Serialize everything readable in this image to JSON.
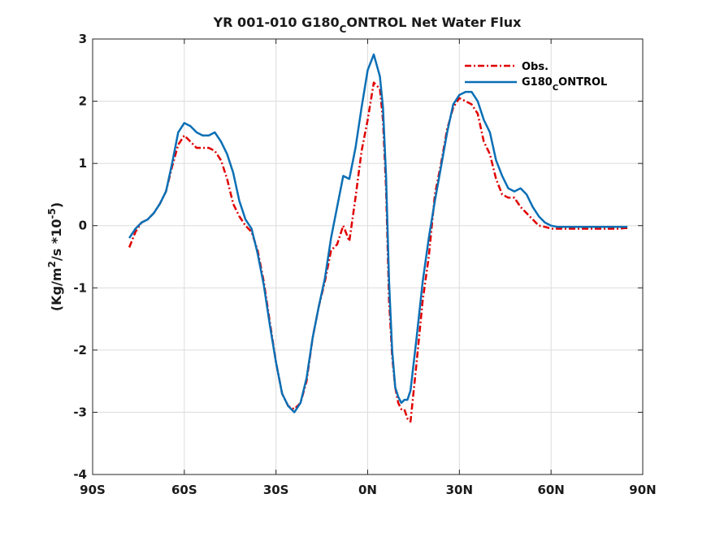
{
  "chart_data": {
    "type": "line",
    "title": "YR 001-010 G180_CONTROL  Net Water Flux",
    "title_parts": {
      "pre": "YR 001-010 G180",
      "sub": "C",
      "post": "ONTROL  Net Water Flux"
    },
    "xlabel": "",
    "ylabel": "(Kg/m^2/s *10^-5)",
    "ylabel_parts": {
      "a": "(Kg/m",
      "sup1": "2",
      "b": "/s *10",
      "sup2": "-5",
      "c": ")"
    },
    "xlim": [
      -90,
      90
    ],
    "ylim": [
      -4,
      3
    ],
    "xticks": [
      {
        "value": -90,
        "label": "90S"
      },
      {
        "value": -60,
        "label": "60S"
      },
      {
        "value": -30,
        "label": "30S"
      },
      {
        "value": 0,
        "label": "0N"
      },
      {
        "value": 30,
        "label": "30N"
      },
      {
        "value": 60,
        "label": "60N"
      },
      {
        "value": 90,
        "label": "90N"
      }
    ],
    "yticks": [
      {
        "value": 3,
        "label": "3"
      },
      {
        "value": 2,
        "label": "2"
      },
      {
        "value": 1,
        "label": "1"
      },
      {
        "value": 0,
        "label": "0"
      },
      {
        "value": -1,
        "label": "-1"
      },
      {
        "value": -2,
        "label": "-2"
      },
      {
        "value": -3,
        "label": "-3"
      },
      {
        "value": -4,
        "label": "-4"
      }
    ],
    "grid": true,
    "legend_position": "top-right",
    "series": [
      {
        "name": "Obs.",
        "legend_parts": {
          "pre": "Obs.",
          "sub": "",
          "post": ""
        },
        "color": "#e00000",
        "dash": "dashdot",
        "x": [
          -78,
          -76,
          -74,
          -72,
          -70,
          -68,
          -66,
          -64,
          -62,
          -60,
          -58,
          -56,
          -54,
          -52,
          -50,
          -48,
          -46,
          -44,
          -42,
          -40,
          -38,
          -36,
          -34,
          -32,
          -30,
          -28,
          -26,
          -24,
          -22,
          -20,
          -18,
          -16,
          -14,
          -12,
          -10,
          -8,
          -6,
          -4,
          -2,
          0,
          2,
          4,
          5,
          6,
          7,
          8,
          9,
          10,
          11,
          12,
          13,
          14,
          16,
          18,
          20,
          22,
          24,
          26,
          28,
          30,
          32,
          34,
          36,
          38,
          40,
          42,
          44,
          46,
          48,
          50,
          52,
          54,
          56,
          58,
          60,
          62,
          64,
          66,
          68,
          70,
          72,
          74,
          76,
          78,
          80,
          82,
          84,
          85
        ],
        "y": [
          -0.35,
          -0.1,
          0.05,
          0.1,
          0.2,
          0.35,
          0.55,
          0.95,
          1.3,
          1.45,
          1.35,
          1.25,
          1.25,
          1.25,
          1.2,
          1.05,
          0.75,
          0.35,
          0.15,
          0.0,
          -0.1,
          -0.4,
          -0.9,
          -1.55,
          -2.2,
          -2.7,
          -2.9,
          -2.95,
          -2.85,
          -2.5,
          -1.8,
          -1.3,
          -0.9,
          -0.4,
          -0.3,
          0.0,
          -0.25,
          0.45,
          1.2,
          1.7,
          2.3,
          2.2,
          1.7,
          0.6,
          -1.2,
          -2.1,
          -2.6,
          -2.85,
          -2.95,
          -2.95,
          -3.1,
          -3.15,
          -2.2,
          -1.2,
          -0.5,
          0.5,
          1.0,
          1.55,
          1.9,
          2.05,
          2.0,
          1.95,
          1.8,
          1.35,
          1.15,
          0.75,
          0.5,
          0.45,
          0.45,
          0.3,
          0.2,
          0.1,
          0.0,
          -0.02,
          -0.05,
          -0.05,
          -0.05,
          -0.05,
          -0.05,
          -0.05,
          -0.05,
          -0.05,
          -0.05,
          -0.05,
          -0.05,
          -0.05,
          -0.04,
          -0.04
        ],
        "y_note": ""
      },
      {
        "name": "G180_CONTROL",
        "legend_parts": {
          "pre": "G180",
          "sub": "C",
          "post": "ONTROL"
        },
        "color": "#0a6fb5",
        "dash": "solid",
        "x": [
          -78,
          -76,
          -74,
          -72,
          -70,
          -68,
          -66,
          -64,
          -62,
          -60,
          -58,
          -56,
          -54,
          -52,
          -50,
          -48,
          -46,
          -44,
          -42,
          -40,
          -38,
          -36,
          -34,
          -32,
          -30,
          -28,
          -26,
          -24,
          -22,
          -20,
          -18,
          -16,
          -14,
          -12,
          -10,
          -8,
          -6,
          -4,
          -2,
          0,
          2,
          4,
          5,
          6,
          7,
          8,
          9,
          10,
          11,
          12,
          13,
          14,
          16,
          18,
          20,
          22,
          24,
          26,
          28,
          30,
          32,
          34,
          36,
          38,
          40,
          42,
          44,
          46,
          48,
          50,
          52,
          54,
          56,
          58,
          60,
          62,
          64,
          66,
          68,
          70,
          72,
          74,
          76,
          78,
          80,
          82,
          84,
          85
        ],
        "y": [
          -0.2,
          -0.05,
          0.05,
          0.1,
          0.2,
          0.35,
          0.55,
          1.0,
          1.5,
          1.65,
          1.6,
          1.5,
          1.45,
          1.45,
          1.5,
          1.35,
          1.15,
          0.85,
          0.4,
          0.1,
          -0.05,
          -0.45,
          -0.95,
          -1.6,
          -2.2,
          -2.7,
          -2.9,
          -3.0,
          -2.85,
          -2.45,
          -1.8,
          -1.3,
          -0.85,
          -0.2,
          0.3,
          0.8,
          0.75,
          1.25,
          1.9,
          2.5,
          2.75,
          2.4,
          1.9,
          0.8,
          -0.9,
          -2.0,
          -2.6,
          -2.75,
          -2.85,
          -2.8,
          -2.8,
          -2.65,
          -1.8,
          -0.9,
          -0.2,
          0.4,
          0.95,
          1.5,
          1.95,
          2.1,
          2.15,
          2.15,
          2.0,
          1.7,
          1.5,
          1.05,
          0.8,
          0.6,
          0.55,
          0.6,
          0.5,
          0.3,
          0.15,
          0.05,
          0.0,
          -0.02,
          -0.02,
          -0.02,
          -0.02,
          -0.02,
          -0.02,
          -0.02,
          -0.02,
          -0.02,
          -0.02,
          -0.02,
          -0.02,
          -0.02
        ],
        "y_note": ""
      }
    ]
  }
}
